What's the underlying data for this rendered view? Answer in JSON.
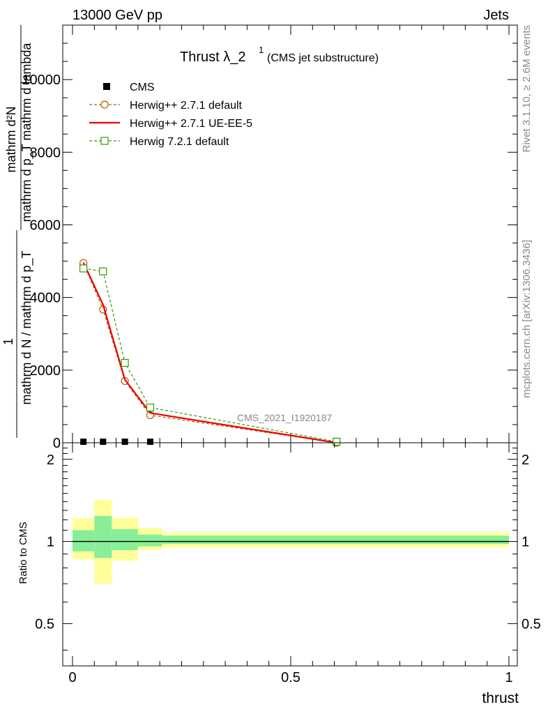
{
  "header": {
    "left": "13000 GeV pp",
    "right": "Jets"
  },
  "side_text": {
    "rivet": "Rivet 3.1.10, ≥ 2.6M events",
    "mcplots": "mcplots.cern.ch [arXiv:1306.3436]"
  },
  "chart_data": [
    {
      "type": "line",
      "title_main": "Thrust λ_2",
      "title_sup": "1",
      "title_sub": "(CMS jet substructure)",
      "watermark": "CMS_2021_I1920187",
      "ylabel_top": "mathrm d²N",
      "ylabel_top2": "mathrm d p_T mathrm d lambda",
      "ylabel_one": "1",
      "ylabel_bottom": "mathrm d N / mathrm d p_T",
      "xlim": [
        0,
        1
      ],
      "ylim": [
        0,
        11500
      ],
      "y_ticks": [
        0,
        2000,
        4000,
        6000,
        8000,
        10000
      ],
      "y_tick_labels": [
        "0",
        "2000",
        "4000",
        "6000",
        "8000",
        "10000"
      ],
      "legend": [
        "CMS",
        "Herwig++ 2.7.1 default",
        "Herwig++ 2.7.1 UE-EE-5",
        "Herwig 7.2.1 default"
      ],
      "series": [
        {
          "name": "CMS",
          "color": "#000000",
          "marker": "square-filled",
          "x": [
            0.025,
            0.07,
            0.12,
            0.178
          ],
          "values": [
            0,
            0,
            0,
            0
          ]
        },
        {
          "name": "Herwig++ 2.7.1 default",
          "color": "#b35900",
          "marker": "circle-open",
          "dash": true,
          "x": [
            0.025,
            0.07,
            0.12,
            0.178,
            0.605
          ],
          "values": [
            4950,
            3670,
            1700,
            760,
            0
          ]
        },
        {
          "name": "Herwig++ 2.7.1 UE-EE-5",
          "color": "#ee0000",
          "marker": "none",
          "dash": false,
          "x": [
            0.025,
            0.07,
            0.12,
            0.178,
            0.605
          ],
          "values": [
            4960,
            3800,
            1740,
            820,
            0
          ]
        },
        {
          "name": "Herwig 7.2.1 default",
          "color": "#339900",
          "marker": "square-open",
          "dash": true,
          "x": [
            0.025,
            0.07,
            0.12,
            0.178,
            0.605
          ],
          "values": [
            4800,
            4720,
            2200,
            970,
            30
          ]
        }
      ]
    },
    {
      "type": "area",
      "ylabel": "Ratio to CMS",
      "xlabel": "thrust",
      "xlim": [
        0,
        1
      ],
      "ylim": [
        0.35,
        2.3
      ],
      "x_ticks": [
        0,
        0.5,
        1
      ],
      "x_tick_labels": [
        "0",
        "0.5",
        "1"
      ],
      "y_ticks": [
        0.5,
        1,
        2
      ],
      "y_tick_labels": [
        "0.5",
        "1",
        "2"
      ],
      "bins": [
        {
          "x0": 0.0,
          "x1": 0.05,
          "yellow": [
            0.86,
            1.22
          ],
          "green": [
            0.92,
            1.1
          ]
        },
        {
          "x0": 0.05,
          "x1": 0.09,
          "yellow": [
            0.7,
            1.42
          ],
          "green": [
            0.87,
            1.24
          ]
        },
        {
          "x0": 0.09,
          "x1": 0.15,
          "yellow": [
            0.85,
            1.22
          ],
          "green": [
            0.93,
            1.11
          ]
        },
        {
          "x0": 0.15,
          "x1": 0.205,
          "yellow": [
            0.93,
            1.12
          ],
          "green": [
            0.96,
            1.06
          ]
        },
        {
          "x0": 0.205,
          "x1": 1.0,
          "yellow": [
            0.95,
            1.08
          ],
          "green": [
            0.98,
            1.05
          ]
        }
      ],
      "ratio_line": 1,
      "colors": {
        "yellow": "#ffff99",
        "green": "#88ee99"
      }
    }
  ]
}
